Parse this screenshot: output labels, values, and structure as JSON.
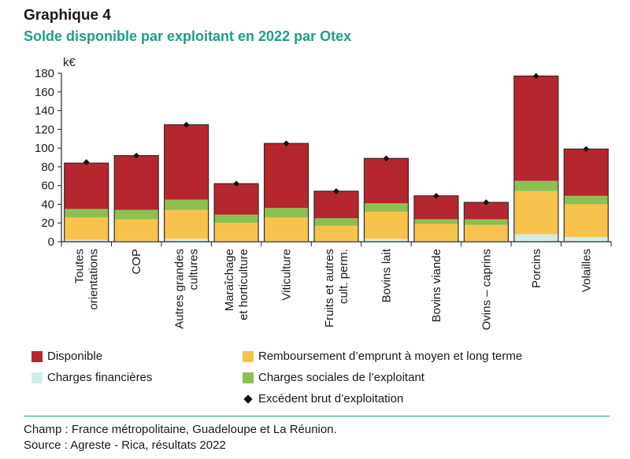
{
  "header": {
    "title": "Graphique 4",
    "subtitle": "Solde disponible par exploitant en 2022 par Otex"
  },
  "chart_data": {
    "type": "bar",
    "stacked": true,
    "ylabel": "k€",
    "ylim": [
      0,
      180
    ],
    "yticks": [
      0,
      20,
      40,
      60,
      80,
      100,
      120,
      140,
      160,
      180
    ],
    "categories": [
      [
        "Toutes",
        "orientations"
      ],
      [
        "COP"
      ],
      [
        "Autres grandes",
        "cultures"
      ],
      [
        "Maraîchage",
        "et horticulture"
      ],
      [
        "Viticulture"
      ],
      [
        "Fruits et autres",
        "cult. perm."
      ],
      [
        "Bovins lait"
      ],
      [
        "Bovins viande"
      ],
      [
        "Ovins – caprins"
      ],
      [
        "Porcins"
      ],
      [
        "Volailles"
      ]
    ],
    "series": [
      {
        "name": "Charges financières",
        "color": "#cfeeea",
        "values": [
          2,
          1,
          3,
          1,
          1,
          1,
          3,
          1,
          1,
          8,
          5
        ]
      },
      {
        "name": "Remboursement d’emprunt à moyen et long terme",
        "color": "#f7c34c",
        "values": [
          24,
          23,
          31,
          19,
          25,
          16,
          29,
          18,
          17,
          46,
          35
        ]
      },
      {
        "name": "Charges sociales de l’exploitant",
        "color": "#8cc152",
        "values": [
          9,
          10,
          11,
          9,
          10,
          8,
          9,
          5,
          6,
          11,
          9
        ]
      },
      {
        "name": "Disponible",
        "color": "#b5262e",
        "values": [
          49,
          58,
          80,
          33,
          69,
          29,
          48,
          25,
          18,
          112,
          50
        ]
      }
    ],
    "ebe": {
      "name": "Excédent brut d’exploitation",
      "values": [
        85,
        92,
        125,
        62,
        105,
        54,
        89,
        49,
        42,
        177,
        99
      ]
    },
    "legend_order": [
      "Disponible",
      "Remboursement d’emprunt à moyen et long terme",
      "Charges financières",
      "Charges sociales de l’exploitant",
      "Excédent brut d’exploitation"
    ]
  },
  "legend": {
    "disponible": "Disponible",
    "remboursement": "Remboursement d’emprunt à moyen et long terme",
    "charges_financieres": "Charges financières",
    "charges_sociales": "Charges sociales de l’exploitant",
    "ebe": "Excédent brut d’exploitation",
    "colors": {
      "disponible": "#b5262e",
      "remboursement": "#f7c34c",
      "charges_financieres": "#cfeeea",
      "charges_sociales": "#8cc152"
    }
  },
  "footer": {
    "champ": "Champ : France métropolitaine, Guadeloupe et La Réunion.",
    "source": "Source : Agreste - Rica, résultats 2022"
  }
}
